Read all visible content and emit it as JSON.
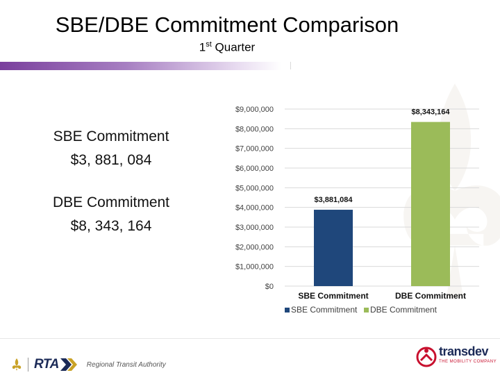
{
  "slide": {
    "title": "SBE/DBE Commitment Comparison",
    "subtitle_prefix": "1",
    "subtitle_sup": "st",
    "subtitle_suffix": " Quarter"
  },
  "summary": {
    "sbe_label": "SBE Commitment",
    "sbe_value": "$3, 881, 084",
    "dbe_label": "DBE Commitment",
    "dbe_value": "$8, 343, 164"
  },
  "chart_data": {
    "type": "bar",
    "categories": [
      "SBE Commitment",
      "DBE Commitment"
    ],
    "values": [
      3881084,
      8343164
    ],
    "data_labels": [
      "$3,881,084",
      "$8,343,164"
    ],
    "colors": [
      "#1f477b",
      "#9bbb59"
    ],
    "ylim": [
      0,
      9000000
    ],
    "yticks": [
      0,
      1000000,
      2000000,
      3000000,
      4000000,
      5000000,
      6000000,
      7000000,
      8000000,
      9000000
    ],
    "ytick_labels": [
      "$0",
      "$1,000,000",
      "$2,000,000",
      "$3,000,000",
      "$4,000,000",
      "$5,000,000",
      "$6,000,000",
      "$7,000,000",
      "$8,000,000",
      "$9,000,000"
    ],
    "grid": true,
    "legend": [
      "SBE Commitment",
      "DBE Commitment"
    ],
    "legend_position": "bottom"
  },
  "footer": {
    "rta_logo_text": "RTA",
    "rta_name": "Regional Transit Authority",
    "transdev_logo_text": "transdev",
    "transdev_tagline": "THE MOBILITY COMPANY"
  }
}
